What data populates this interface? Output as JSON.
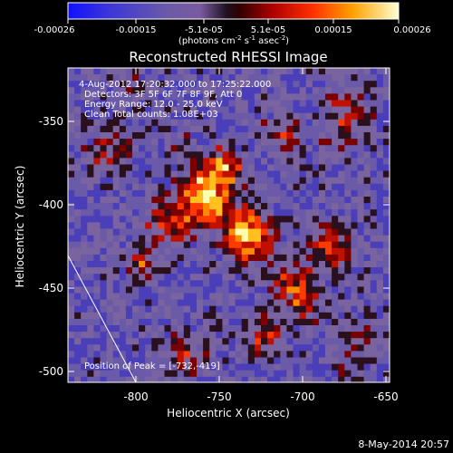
{
  "colorbar": {
    "ticks": [
      "-0.00026",
      "-0.00015",
      "-5.1e-05",
      "5.1e-05",
      "0.00015",
      "0.00026"
    ],
    "unit_base": "(photons cm",
    "unit_exp1": "-2",
    "unit_mid": " s",
    "unit_exp2": "-1",
    "unit_mid2": " asec",
    "unit_exp3": "-2",
    "unit_end": ")"
  },
  "title": "Reconstructed RHESSI Image",
  "info": {
    "line1": "4-Aug-2012 17:20:32.000 to 17:25:22.000",
    "line2": "Detectors: 3F 5F 6F 7F 8F 9F, Att 0",
    "line3": "Energy Range: 12.0 - 25.0 keV",
    "line4": "Clean     Total counts: 1.08E+03"
  },
  "peak_label": "Position of Peak = [-732,-419]",
  "x_axis": {
    "label": "Heliocentric X (arcsec)",
    "ticks": [
      "-800",
      "-750",
      "-700",
      "-650"
    ]
  },
  "y_axis": {
    "label": "Heliocentric Y (arcsec)",
    "ticks": [
      "-350",
      "-400",
      "-450",
      "-500"
    ]
  },
  "timestamp": "8-May-2014 20:57"
}
